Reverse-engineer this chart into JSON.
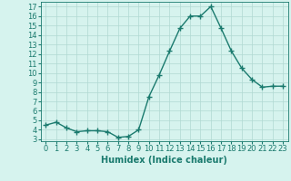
{
  "x": [
    0,
    1,
    2,
    3,
    4,
    5,
    6,
    7,
    8,
    9,
    10,
    11,
    12,
    13,
    14,
    15,
    16,
    17,
    18,
    19,
    20,
    21,
    22,
    23
  ],
  "y": [
    4.5,
    4.8,
    4.2,
    3.8,
    3.9,
    3.9,
    3.8,
    3.2,
    3.3,
    4.0,
    7.5,
    9.8,
    12.3,
    14.7,
    16.0,
    16.0,
    17.0,
    14.7,
    12.3,
    10.5,
    9.3,
    8.5,
    8.6,
    8.6
  ],
  "line_color": "#1a7a6e",
  "marker": "+",
  "marker_size": 4,
  "bg_color": "#d6f3ee",
  "grid_color": "#b0d9d2",
  "xlabel": "Humidex (Indice chaleur)",
  "xlim": [
    -0.5,
    23.5
  ],
  "ylim": [
    2.8,
    17.5
  ],
  "yticks": [
    3,
    4,
    5,
    6,
    7,
    8,
    9,
    10,
    11,
    12,
    13,
    14,
    15,
    16,
    17
  ],
  "xticks": [
    0,
    1,
    2,
    3,
    4,
    5,
    6,
    7,
    8,
    9,
    10,
    11,
    12,
    13,
    14,
    15,
    16,
    17,
    18,
    19,
    20,
    21,
    22,
    23
  ],
  "xlabel_fontsize": 7,
  "tick_fontsize": 6,
  "line_width": 1.0,
  "markeredgewidth": 1.0
}
